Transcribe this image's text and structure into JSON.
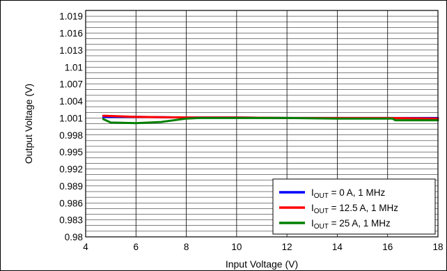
{
  "chart_data": {
    "type": "line",
    "xlabel": "Input Voltage (V)",
    "ylabel": "Output Voltage (V)",
    "xlim": [
      4,
      18
    ],
    "ylim": [
      0.98,
      1.02
    ],
    "x_ticks": [
      "4",
      "6",
      "8",
      "10",
      "12",
      "14",
      "16",
      "18"
    ],
    "y_ticks": [
      "0.98",
      "0.983",
      "0.986",
      "0.989",
      "0.992",
      "0.995",
      "0.998",
      "1.001",
      "1.004",
      "1.007",
      "1.01",
      "1.013",
      "1.016",
      "1.019"
    ],
    "grid": true,
    "legend_position": "bottom-right",
    "series": [
      {
        "name": "I_OUT = 0 A, 1 MHz",
        "name_parts": {
          "main": "I",
          "sub": "OUT",
          "rest": " = 0 A, 1 MHz"
        },
        "color": "#0000ff",
        "x": [
          4.7,
          6,
          8,
          10,
          12,
          14,
          16,
          18
        ],
        "y": [
          1.0012,
          1.0012,
          1.0011,
          1.0011,
          1.001,
          1.001,
          1.001,
          1.001
        ]
      },
      {
        "name": "I_OUT = 12.5 A, 1 MHz",
        "name_parts": {
          "main": "I",
          "sub": "OUT",
          "rest": " = 12.5 A, 1 MHz"
        },
        "color": "#ff0000",
        "x": [
          4.7,
          6,
          8,
          10,
          12,
          14,
          16,
          18
        ],
        "y": [
          1.0014,
          1.0012,
          1.0011,
          1.0011,
          1.001,
          1.001,
          1.001,
          1.0009
        ]
      },
      {
        "name": "I_OUT = 25 A, 1 MHz",
        "name_parts": {
          "main": "I",
          "sub": "OUT",
          "rest": " = 25 A, 1 MHz"
        },
        "color": "#008000",
        "x": [
          4.7,
          5,
          6,
          7,
          8,
          8.5,
          10,
          12,
          14,
          16.2,
          16.3,
          18
        ],
        "y": [
          1.0008,
          1.0002,
          1.0001,
          1.0003,
          1.0009,
          1.001,
          1.001,
          1.001,
          1.0009,
          1.0009,
          1.0006,
          1.0006
        ]
      }
    ]
  }
}
